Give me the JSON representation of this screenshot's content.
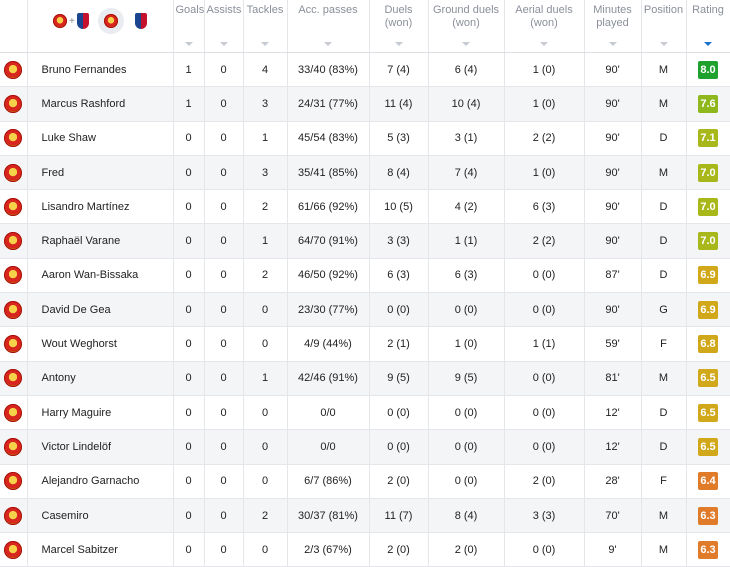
{
  "columns": [
    {
      "key": "goals",
      "label": "Goals"
    },
    {
      "key": "assists",
      "label": "Assists"
    },
    {
      "key": "tackles",
      "label": "Tackles"
    },
    {
      "key": "passes",
      "label": "Acc. passes"
    },
    {
      "key": "duels",
      "label": "Duels\n(won)"
    },
    {
      "key": "ground",
      "label": "Ground duels\n(won)"
    },
    {
      "key": "aerial",
      "label": "Aerial duels\n(won)"
    },
    {
      "key": "minutes",
      "label": "Minutes\nplayed"
    },
    {
      "key": "position",
      "label": "Position"
    },
    {
      "key": "rating",
      "label": "Rating"
    }
  ],
  "rating_colors": {
    "green": "#1fa22d",
    "lime": "#8fb81c",
    "olive": "#a8b71a",
    "yellow": "#d2a81b",
    "orange": "#e07b2a"
  },
  "players": [
    {
      "name": "Bruno Fernandes",
      "goals": "1",
      "assists": "0",
      "tackles": "4",
      "passes": "33/40 (83%)",
      "duels": "7 (4)",
      "ground": "6 (4)",
      "aerial": "1 (0)",
      "minutes": "90'",
      "position": "M",
      "rating": "8.0",
      "rating_color": "#1fa22d"
    },
    {
      "name": "Marcus Rashford",
      "goals": "1",
      "assists": "0",
      "tackles": "3",
      "passes": "24/31 (77%)",
      "duels": "11 (4)",
      "ground": "10 (4)",
      "aerial": "1 (0)",
      "minutes": "90'",
      "position": "M",
      "rating": "7.6",
      "rating_color": "#8fb81c"
    },
    {
      "name": "Luke Shaw",
      "goals": "0",
      "assists": "0",
      "tackles": "1",
      "passes": "45/54 (83%)",
      "duels": "5 (3)",
      "ground": "3 (1)",
      "aerial": "2 (2)",
      "minutes": "90'",
      "position": "D",
      "rating": "7.1",
      "rating_color": "#a8b71a"
    },
    {
      "name": "Fred",
      "goals": "0",
      "assists": "0",
      "tackles": "3",
      "passes": "35/41 (85%)",
      "duels": "8 (4)",
      "ground": "7 (4)",
      "aerial": "1 (0)",
      "minutes": "90'",
      "position": "M",
      "rating": "7.0",
      "rating_color": "#a8b71a"
    },
    {
      "name": "Lisandro Martínez",
      "goals": "0",
      "assists": "0",
      "tackles": "2",
      "passes": "61/66 (92%)",
      "duels": "10 (5)",
      "ground": "4 (2)",
      "aerial": "6 (3)",
      "minutes": "90'",
      "position": "D",
      "rating": "7.0",
      "rating_color": "#a8b71a"
    },
    {
      "name": "Raphaël Varane",
      "goals": "0",
      "assists": "0",
      "tackles": "1",
      "passes": "64/70 (91%)",
      "duels": "3 (3)",
      "ground": "1 (1)",
      "aerial": "2 (2)",
      "minutes": "90'",
      "position": "D",
      "rating": "7.0",
      "rating_color": "#a8b71a"
    },
    {
      "name": "Aaron Wan-Bissaka",
      "goals": "0",
      "assists": "0",
      "tackles": "2",
      "passes": "46/50 (92%)",
      "duels": "6 (3)",
      "ground": "6 (3)",
      "aerial": "0 (0)",
      "minutes": "87'",
      "position": "D",
      "rating": "6.9",
      "rating_color": "#d2a81b"
    },
    {
      "name": "David De Gea",
      "goals": "0",
      "assists": "0",
      "tackles": "0",
      "passes": "23/30 (77%)",
      "duels": "0 (0)",
      "ground": "0 (0)",
      "aerial": "0 (0)",
      "minutes": "90'",
      "position": "G",
      "rating": "6.9",
      "rating_color": "#d2a81b"
    },
    {
      "name": "Wout Weghorst",
      "goals": "0",
      "assists": "0",
      "tackles": "0",
      "passes": "4/9 (44%)",
      "duels": "2 (1)",
      "ground": "1 (0)",
      "aerial": "1 (1)",
      "minutes": "59'",
      "position": "F",
      "rating": "6.8",
      "rating_color": "#d2a81b"
    },
    {
      "name": "Antony",
      "goals": "0",
      "assists": "0",
      "tackles": "1",
      "passes": "42/46 (91%)",
      "duels": "9 (5)",
      "ground": "9 (5)",
      "aerial": "0 (0)",
      "minutes": "81'",
      "position": "M",
      "rating": "6.5",
      "rating_color": "#d2a81b"
    },
    {
      "name": "Harry Maguire",
      "goals": "0",
      "assists": "0",
      "tackles": "0",
      "passes": "0/0",
      "duels": "0 (0)",
      "ground": "0 (0)",
      "aerial": "0 (0)",
      "minutes": "12'",
      "position": "D",
      "rating": "6.5",
      "rating_color": "#d2a81b"
    },
    {
      "name": "Victor Lindelöf",
      "goals": "0",
      "assists": "0",
      "tackles": "0",
      "passes": "0/0",
      "duels": "0 (0)",
      "ground": "0 (0)",
      "aerial": "0 (0)",
      "minutes": "12'",
      "position": "D",
      "rating": "6.5",
      "rating_color": "#d2a81b"
    },
    {
      "name": "Alejandro Garnacho",
      "goals": "0",
      "assists": "0",
      "tackles": "0",
      "passes": "6/7 (86%)",
      "duels": "2 (0)",
      "ground": "0 (0)",
      "aerial": "2 (0)",
      "minutes": "28'",
      "position": "F",
      "rating": "6.4",
      "rating_color": "#e07b2a"
    },
    {
      "name": "Casemiro",
      "goals": "0",
      "assists": "0",
      "tackles": "2",
      "passes": "30/37 (81%)",
      "duels": "11 (7)",
      "ground": "8 (4)",
      "aerial": "3 (3)",
      "minutes": "70'",
      "position": "M",
      "rating": "6.3",
      "rating_color": "#e07b2a"
    },
    {
      "name": "Marcel Sabitzer",
      "goals": "0",
      "assists": "0",
      "tackles": "0",
      "passes": "2/3 (67%)",
      "duels": "2 (0)",
      "ground": "2 (0)",
      "aerial": "0 (0)",
      "minutes": "9'",
      "position": "M",
      "rating": "6.3",
      "rating_color": "#e07b2a"
    }
  ]
}
